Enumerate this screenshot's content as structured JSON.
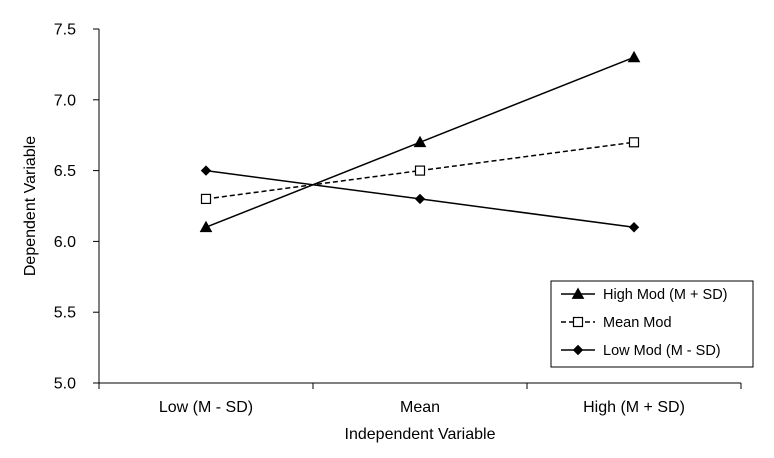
{
  "chart_data": {
    "type": "line",
    "title": "",
    "xlabel": "Independent Variable",
    "ylabel": "Dependent Variable",
    "categories": [
      "Low (M - SD)",
      "Mean",
      "High (M + SD)"
    ],
    "ylim": [
      5.0,
      7.5
    ],
    "yticks": [
      5.0,
      5.5,
      6.0,
      6.5,
      7.0,
      7.5
    ],
    "ytick_labels": [
      "5.0",
      "5.5",
      "6.0",
      "6.5",
      "7.0",
      "7.5"
    ],
    "grid": false,
    "legend_position": "bottom-right",
    "series": [
      {
        "name": "High Mod (M + SD)",
        "values": [
          6.1,
          6.7,
          7.3
        ],
        "marker": "triangle",
        "line_style": "solid",
        "color": "#000000"
      },
      {
        "name": "Mean Mod",
        "values": [
          6.3,
          6.5,
          6.7
        ],
        "marker": "square-open",
        "line_style": "dashed",
        "color": "#000000"
      },
      {
        "name": "Low Mod (M - SD)",
        "values": [
          6.5,
          6.3,
          6.1
        ],
        "marker": "diamond",
        "line_style": "solid",
        "color": "#000000"
      }
    ]
  }
}
